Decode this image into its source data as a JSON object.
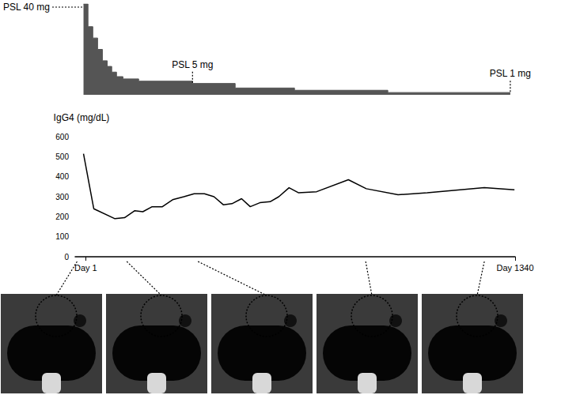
{
  "chart_data": [
    {
      "type": "step_area",
      "x": [
        -6,
        8,
        23,
        38,
        53,
        68,
        82,
        97,
        117,
        166,
        334,
        467,
        652,
        943,
        1325
      ],
      "values": [
        40,
        30,
        25,
        20,
        15,
        12.5,
        10,
        8,
        7,
        6,
        5,
        3,
        2,
        1,
        1
      ],
      "color": "#555555",
      "xlim": [
        -32,
        1340
      ],
      "ylim": [
        0,
        40
      ],
      "tick_labels": false,
      "annotations": [
        {
          "text": "PSL 40 mg",
          "x": -6,
          "y": 40
        },
        {
          "text": "PSL 5 mg",
          "x": 334,
          "y": 5
        },
        {
          "text": "PSL 1 mg",
          "x": 1325,
          "y": 1
        }
      ]
    },
    {
      "type": "line",
      "y_label": "IgG4 (mg/dL)",
      "x": [
        -6,
        26,
        92,
        122,
        154,
        179,
        208,
        240,
        272,
        307,
        339,
        371,
        401,
        430,
        457,
        487,
        514,
        544,
        576,
        603,
        635,
        664,
        721,
        820,
        876,
        975,
        1066,
        1244,
        1338
      ],
      "values": [
        515,
        240,
        190,
        195,
        230,
        225,
        250,
        250,
        285,
        300,
        315,
        315,
        300,
        260,
        265,
        290,
        250,
        270,
        275,
        300,
        345,
        320,
        325,
        385,
        340,
        310,
        320,
        345,
        335
      ],
      "color": "#000000",
      "xlim": [
        -32,
        1340
      ],
      "ylim": [
        0,
        600
      ],
      "xticks": [
        {
          "value": 1,
          "label": "Day 1"
        },
        {
          "value": 1340,
          "label": "Day 1340"
        }
      ],
      "yticks": [
        0,
        100,
        200,
        300,
        400,
        500,
        600
      ],
      "grid": false,
      "ct_days": [
        -26,
        129,
        351,
        874,
        1244
      ]
    }
  ]
}
